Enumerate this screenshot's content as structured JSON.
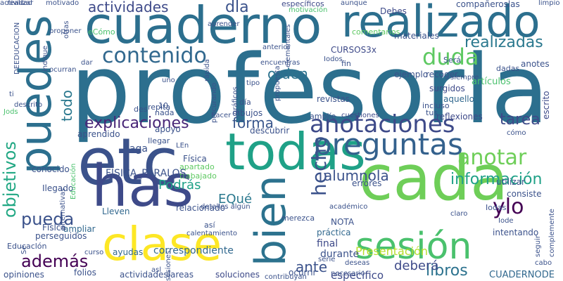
{
  "words": [
    {
      "text": "profesorla",
      "color": "#2c6f8e"
    },
    {
      "text": "cuaderno",
      "color": "#2c6f8e"
    },
    {
      "text": "realizado",
      "color": "#2c6f8e"
    },
    {
      "text": "puedes",
      "color": "#2c6f8e"
    },
    {
      "text": "etc",
      "color": "#3b528b"
    },
    {
      "text": "todas",
      "color": "#1fa187"
    },
    {
      "text": "has",
      "color": "#3e4a89"
    },
    {
      "text": "cada",
      "color": "#6ece58"
    },
    {
      "text": "clase",
      "color": "#fde725"
    },
    {
      "text": "sesión",
      "color": "#4ac16d"
    },
    {
      "text": "bien",
      "color": "#2c728e"
    },
    {
      "text": "preguntas",
      "color": "#34618d"
    },
    {
      "text": "anotaciones",
      "color": "#3e4a89"
    },
    {
      "text": "contenido",
      "color": "#31688e"
    },
    {
      "text": "duda",
      "color": "#5ec962"
    },
    {
      "text": "dla",
      "color": "#3b528b"
    },
    {
      "text": "actividades",
      "color": "#3e4a89"
    },
    {
      "text": "anotar",
      "color": "#6ece58"
    },
    {
      "text": "ylo",
      "color": "#440154"
    },
    {
      "text": "hecho",
      "color": "#3b528b"
    },
    {
      "text": "objetivos",
      "color": "#22a884"
    },
    {
      "text": "explicaciones",
      "color": "#482677"
    },
    {
      "text": "forma",
      "color": "#39568c"
    },
    {
      "text": "realizadas",
      "color": "#2a788e"
    },
    {
      "text": "orden",
      "color": "#2c728e"
    },
    {
      "text": "tarea",
      "color": "#3e4a89"
    },
    {
      "text": "información",
      "color": "#1fa187"
    },
    {
      "text": "alumnola",
      "color": "#3b528b"
    },
    {
      "text": "pueda",
      "color": "#3b528b"
    },
    {
      "text": "además",
      "color": "#440154"
    },
    {
      "text": "todo",
      "color": "#2a788e"
    },
    {
      "text": "libros",
      "color": "#2c728e"
    },
    {
      "text": "ante",
      "color": "#3b528b"
    },
    {
      "text": "deberá",
      "color": "#3e4a89"
    },
    {
      "text": "Podrás",
      "color": "#1fa187"
    },
    {
      "text": "EQué",
      "color": "#2a788e"
    },
    {
      "text": "correspondiente",
      "color": "#31688e"
    },
    {
      "text": "Presentación",
      "color": "#b5de2b"
    },
    {
      "text": "especifico",
      "color": "#3e4a89"
    },
    {
      "text": "durante",
      "color": "#3b528b"
    },
    {
      "text": "final",
      "color": "#3e4a89"
    },
    {
      "text": "práctica",
      "color": "#31688e"
    },
    {
      "text": "NOTA",
      "color": "#3b528b"
    },
    {
      "text": "CUADERNODE",
      "color": "#31688e"
    },
    {
      "text": "compañeroslas",
      "color": "#3b528b"
    },
    {
      "text": "Debes",
      "color": "#3e4a89"
    },
    {
      "text": "CURSOS3x",
      "color": "#3e4a89"
    },
    {
      "text": "materiales",
      "color": "#3b528b"
    },
    {
      "text": "recoger",
      "color": "#3b528b"
    },
    {
      "text": "artículos",
      "color": "#4ac16d"
    },
    {
      "text": "anotes",
      "color": "#3b528b"
    },
    {
      "text": "escrito",
      "color": "#3e4a89"
    },
    {
      "text": "ejemplo",
      "color": "#3b528b"
    },
    {
      "text": "surgidos",
      "color": "#3e4a89"
    },
    {
      "text": "aquello",
      "color": "#31688e"
    },
    {
      "text": "revistas",
      "color": "#3b528b"
    },
    {
      "text": "reflexiones",
      "color": "#3e4a89"
    },
    {
      "text": "dibujos",
      "color": "#3b528b"
    },
    {
      "text": "cuestiones",
      "color": "#3e4a89"
    },
    {
      "text": "amplíe",
      "color": "#3b528b"
    },
    {
      "text": "descubrir",
      "color": "#3b528b"
    },
    {
      "text": "apartado",
      "color": "#5ec962"
    },
    {
      "text": "trabajado",
      "color": "#5ec962"
    },
    {
      "text": "Física",
      "color": "#3b528b"
    },
    {
      "text": "FlSICA_PARALOS",
      "color": "#3b528b"
    },
    {
      "text": "Ilegado",
      "color": "#3b528b"
    },
    {
      "text": "conocido",
      "color": "#3b528b"
    },
    {
      "text": "aprendido",
      "color": "#3b528b"
    },
    {
      "text": "haga",
      "color": "#3b528b"
    },
    {
      "text": "apoyo",
      "color": "#3b528b"
    },
    {
      "text": "relacionado",
      "color": "#3b528b"
    },
    {
      "text": "ampliar",
      "color": "#31688e"
    },
    {
      "text": "Lleven",
      "color": "#31688e"
    },
    {
      "text": "ayudas",
      "color": "#31688e"
    },
    {
      "text": "folios",
      "color": "#3b528b"
    },
    {
      "text": "opiniones",
      "color": "#3b528b"
    },
    {
      "text": "actividadeslareas",
      "color": "#3b528b"
    },
    {
      "text": "soluciones",
      "color": "#3e4a89"
    },
    {
      "text": "ocurrir",
      "color": "#3b528b"
    },
    {
      "text": "errores",
      "color": "#3b528b"
    },
    {
      "text": "intentando",
      "color": "#3b528b"
    },
    {
      "text": "consiste",
      "color": "#3b528b"
    },
    {
      "text": "utilizar",
      "color": "#3b528b"
    },
    {
      "text": "complemente",
      "color": "#3b528b"
    },
    {
      "text": "Educación",
      "color": "#4ac16d"
    },
    {
      "text": "perseguidos",
      "color": "#3b528b"
    },
    {
      "text": "Físlca",
      "color": "#3b528b"
    },
    {
      "text": "Educaclón",
      "color": "#3b528b"
    },
    {
      "text": "motivación",
      "color": "#4ac16d"
    },
    {
      "text": "específicos",
      "color": "#3e4a89"
    },
    {
      "text": "aunque",
      "color": "#3b528b"
    },
    {
      "text": "limpio",
      "color": "#3b528b"
    },
    {
      "text": "comentarios",
      "color": "#5ec962"
    },
    {
      "text": "Será",
      "color": "#3b528b"
    },
    {
      "text": "dadas",
      "color": "#3b528b"
    },
    {
      "text": "fin",
      "color": "#3b528b"
    },
    {
      "text": "encuentras",
      "color": "#3b528b"
    },
    {
      "text": "gráficos",
      "color": "#3b528b"
    },
    {
      "text": "incluso",
      "color": "#3b528b"
    },
    {
      "text": "tus",
      "color": "#3b528b"
    },
    {
      "text": "día",
      "color": "#3b528b"
    },
    {
      "text": "nada",
      "color": "#3b528b"
    },
    {
      "text": "repita",
      "color": "#3b528b"
    },
    {
      "text": "des",
      "color": "#3b528b"
    },
    {
      "text": "10",
      "color": "#3b528b"
    },
    {
      "text": "Jods",
      "color": "#4ac16d"
    },
    {
      "text": "descrito",
      "color": "#3b528b"
    },
    {
      "text": "ti",
      "color": "#3b528b"
    },
    {
      "text": "ocurran",
      "color": "#3b528b"
    },
    {
      "text": "dar",
      "color": "#3b528b"
    },
    {
      "text": "proponer",
      "color": "#3b528b"
    },
    {
      "text": "realizar",
      "color": "#3b528b"
    },
    {
      "text": "motivado",
      "color": "#3b528b"
    },
    {
      "text": "eCómo",
      "color": "#4ac16d"
    },
    {
      "text": "DEEDUCACION",
      "color": "#3b528b"
    },
    {
      "text": "indique",
      "color": "#3b528b"
    },
    {
      "text": "otras",
      "color": "#3b528b"
    },
    {
      "text": "hacer",
      "color": "#3b528b"
    },
    {
      "text": "procurando",
      "color": "#3b528b"
    },
    {
      "text": "tipo",
      "color": "#3b528b"
    },
    {
      "text": "anterior",
      "color": "#3b528b"
    },
    {
      "text": "sesiones",
      "color": "#3b528b"
    },
    {
      "text": "Ilegar",
      "color": "#3b528b"
    },
    {
      "text": "LEn",
      "color": "#3b528b"
    },
    {
      "text": "así",
      "color": "#3b528b"
    },
    {
      "text": "merezca",
      "color": "#3b528b"
    },
    {
      "text": "calentamiento",
      "color": "#3b528b"
    },
    {
      "text": "detalles algún",
      "color": "#3b528b"
    },
    {
      "text": "académico",
      "color": "#3b528b"
    },
    {
      "text": "claro",
      "color": "#3b528b"
    },
    {
      "text": "necesario",
      "color": "#3b528b"
    },
    {
      "text": "deseas",
      "color": "#3b528b"
    },
    {
      "text": "serie",
      "color": "#3b528b"
    },
    {
      "text": "Iodas",
      "color": "#3b528b"
    },
    {
      "text": "Iode",
      "color": "#3b528b"
    },
    {
      "text": "asl",
      "color": "#3b528b"
    },
    {
      "text": "cabo",
      "color": "#3b528b"
    },
    {
      "text": "seguir",
      "color": "#3b528b"
    },
    {
      "text": "cómo",
      "color": "#3b528b"
    },
    {
      "text": "curso",
      "color": "#3b528b"
    },
    {
      "text": "siempre",
      "color": "#3b528b"
    },
    {
      "text": "Iodos",
      "color": "#3b528b"
    },
    {
      "text": "uno",
      "color": "#3b528b"
    },
    {
      "text": "contribuyan",
      "color": "#3b528b"
    },
    {
      "text": "Sé",
      "color": "#3b528b"
    },
    {
      "text": "alternativas",
      "color": "#3b528b"
    },
    {
      "text": "aprender",
      "color": "#3b528b"
    },
    {
      "text": "rápida",
      "color": "#3b528b"
    },
    {
      "text": "propuesta",
      "color": "#3b528b"
    },
    {
      "text": "elementales",
      "color": "#3b528b"
    },
    {
      "text": "actividad",
      "color": "#3b528b"
    }
  ]
}
